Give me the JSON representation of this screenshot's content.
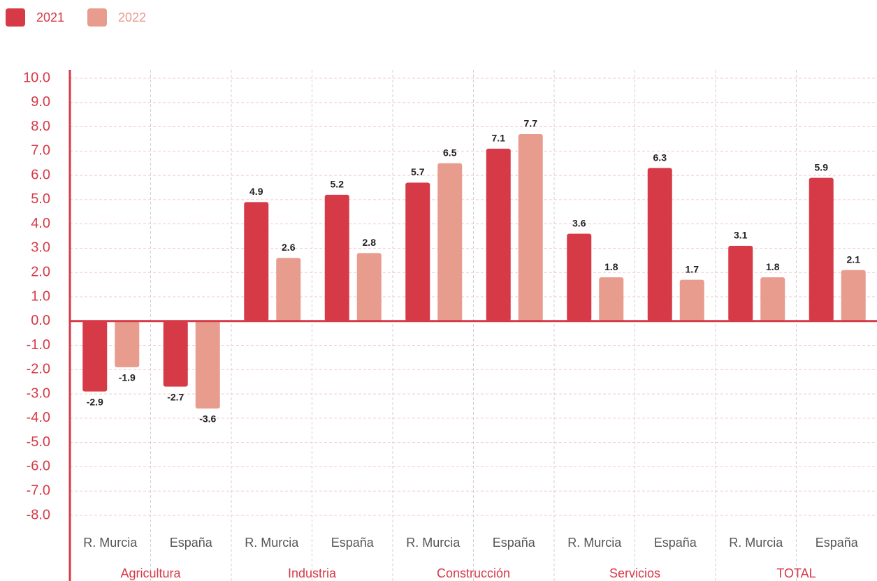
{
  "chart_data": {
    "type": "bar",
    "categories": [
      "R. Murcia",
      "España",
      "R. Murcia",
      "España",
      "R. Murcia",
      "España",
      "R. Murcia",
      "España",
      "R. Murcia",
      "España"
    ],
    "groups": [
      "Agricultura",
      "Industria",
      "Construcción",
      "Servicios",
      "TOTAL"
    ],
    "series": [
      {
        "name": "2021",
        "color": "#d63a47",
        "values": [
          -2.9,
          -2.7,
          4.9,
          5.2,
          5.7,
          7.1,
          3.6,
          6.3,
          3.1,
          5.9
        ]
      },
      {
        "name": "2022",
        "color": "#e89c8d",
        "values": [
          -1.9,
          -3.6,
          2.6,
          2.8,
          6.5,
          7.7,
          1.8,
          1.7,
          1.8,
          2.1
        ]
      }
    ],
    "ylim": [
      -8,
      10
    ],
    "yticks": [
      {
        "value": 10,
        "label": "10.0"
      },
      {
        "value": 9,
        "label": "9.0"
      },
      {
        "value": 8,
        "label": "8.0"
      },
      {
        "value": 7,
        "label": "7.0"
      },
      {
        "value": 6,
        "label": "6.0"
      },
      {
        "value": 5,
        "label": "5.0"
      },
      {
        "value": 4,
        "label": "4.0"
      },
      {
        "value": 3,
        "label": "3.0"
      },
      {
        "value": 2,
        "label": "2.0"
      },
      {
        "value": 1,
        "label": "1.0"
      },
      {
        "value": 0,
        "label": "0.0"
      },
      {
        "value": -1,
        "label": "-1.0"
      },
      {
        "value": -2,
        "label": "-2.0"
      },
      {
        "value": -3,
        "label": "-3.0"
      },
      {
        "value": -4,
        "label": "-4.0"
      },
      {
        "value": -5,
        "label": "-5.0"
      },
      {
        "value": -6,
        "label": "-6.0"
      },
      {
        "value": -7,
        "label": "-7.0"
      },
      {
        "value": -8,
        "label": "-8.0"
      }
    ],
    "grid": true,
    "legend": "top-left"
  }
}
